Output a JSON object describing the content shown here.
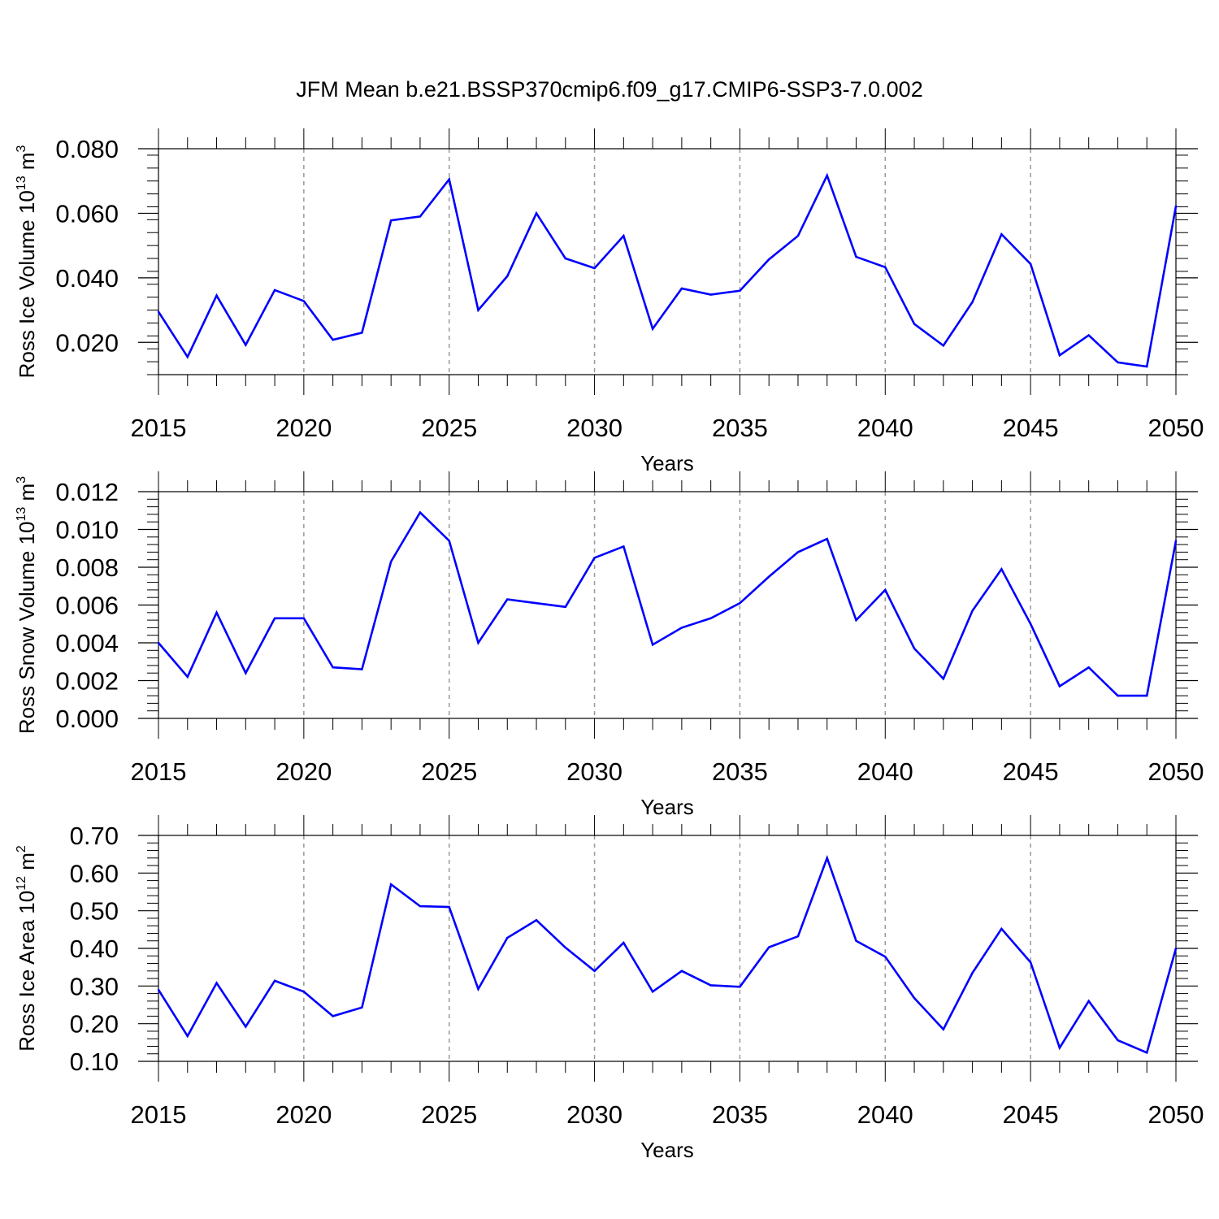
{
  "title": "JFM Mean b.e21.BSSP370cmip6.f09_g17.CMIP6-SSP3-7.0.002",
  "colors": {
    "line": "#0000ff",
    "axis": "#000000",
    "grid": "#999999",
    "background": "#ffffff"
  },
  "chart_data": [
    {
      "type": "line",
      "ylabel": "Ross Ice Volume 10",
      "ylabel_exponent": "13",
      "ylabel_unit": "m",
      "ylabel_unit_power": "3",
      "xlabel": "Years",
      "xlim": [
        2015,
        2050
      ],
      "ylim": [
        0.01,
        0.08
      ],
      "xticks": [
        "2015",
        "2020",
        "2025",
        "2030",
        "2035",
        "2040",
        "2045",
        "2050"
      ],
      "yticks": [
        "0.020",
        "0.040",
        "0.060",
        "0.080"
      ],
      "grid": "vertical dashed at major x ticks",
      "series": [
        {
          "name": "Ross Ice Volume",
          "x": [
            2015,
            2016,
            2017,
            2018,
            2019,
            2020,
            2021,
            2022,
            2023,
            2024,
            2025,
            2026,
            2027,
            2028,
            2029,
            2030,
            2031,
            2032,
            2033,
            2034,
            2035,
            2036,
            2037,
            2038,
            2039,
            2040,
            2041,
            2042,
            2043,
            2044,
            2045,
            2046,
            2047,
            2048,
            2049,
            2050
          ],
          "values": [
            0.0295,
            0.0155,
            0.0345,
            0.0192,
            0.0362,
            0.0328,
            0.0208,
            0.023,
            0.0578,
            0.059,
            0.0705,
            0.03,
            0.0405,
            0.06,
            0.046,
            0.043,
            0.053,
            0.0242,
            0.0367,
            0.0348,
            0.036,
            0.0457,
            0.053,
            0.0717,
            0.0465,
            0.0433,
            0.0257,
            0.019,
            0.0325,
            0.0535,
            0.0443,
            0.016,
            0.0222,
            0.0138,
            0.0125,
            0.0622
          ]
        }
      ]
    },
    {
      "type": "line",
      "ylabel": "Ross Snow Volume 10",
      "ylabel_exponent": "13",
      "ylabel_unit": "m",
      "ylabel_unit_power": "3",
      "xlabel": "Years",
      "xlim": [
        2015,
        2050
      ],
      "ylim": [
        0.0,
        0.012
      ],
      "xticks": [
        "2015",
        "2020",
        "2025",
        "2030",
        "2035",
        "2040",
        "2045",
        "2050"
      ],
      "yticks": [
        "0.000",
        "0.002",
        "0.004",
        "0.006",
        "0.008",
        "0.010",
        "0.012"
      ],
      "grid": "vertical dashed at major x ticks",
      "series": [
        {
          "name": "Ross Snow Volume",
          "x": [
            2015,
            2016,
            2017,
            2018,
            2019,
            2020,
            2021,
            2022,
            2023,
            2024,
            2025,
            2026,
            2027,
            2028,
            2029,
            2030,
            2031,
            2032,
            2033,
            2034,
            2035,
            2036,
            2037,
            2038,
            2039,
            2040,
            2041,
            2042,
            2043,
            2044,
            2045,
            2046,
            2047,
            2048,
            2049,
            2050
          ],
          "values": [
            0.004,
            0.0022,
            0.0056,
            0.0024,
            0.0053,
            0.0053,
            0.0027,
            0.0026,
            0.0083,
            0.0109,
            0.0094,
            0.004,
            0.0063,
            0.0061,
            0.0059,
            0.0085,
            0.0091,
            0.0039,
            0.0048,
            0.0053,
            0.0061,
            0.0075,
            0.0088,
            0.0095,
            0.0052,
            0.0068,
            0.0037,
            0.0021,
            0.0057,
            0.0079,
            0.005,
            0.0017,
            0.0027,
            0.0012,
            0.0012,
            0.0094
          ]
        }
      ]
    },
    {
      "type": "line",
      "ylabel": "Ross Ice Area 10",
      "ylabel_exponent": "12",
      "ylabel_unit": "m",
      "ylabel_unit_power": "2",
      "xlabel": "Years",
      "xlim": [
        2015,
        2050
      ],
      "ylim": [
        0.1,
        0.7
      ],
      "xticks": [
        "2015",
        "2020",
        "2025",
        "2030",
        "2035",
        "2040",
        "2045",
        "2050"
      ],
      "yticks": [
        "0.10",
        "0.20",
        "0.30",
        "0.40",
        "0.50",
        "0.60",
        "0.70"
      ],
      "grid": "vertical dashed at major x ticks",
      "series": [
        {
          "name": "Ross Ice Area",
          "x": [
            2015,
            2016,
            2017,
            2018,
            2019,
            2020,
            2021,
            2022,
            2023,
            2024,
            2025,
            2026,
            2027,
            2028,
            2029,
            2030,
            2031,
            2032,
            2033,
            2034,
            2035,
            2036,
            2037,
            2038,
            2039,
            2040,
            2041,
            2042,
            2043,
            2044,
            2045,
            2046,
            2047,
            2048,
            2049,
            2050
          ],
          "values": [
            0.29,
            0.167,
            0.308,
            0.192,
            0.314,
            0.285,
            0.22,
            0.243,
            0.57,
            0.512,
            0.51,
            0.292,
            0.428,
            0.475,
            0.402,
            0.34,
            0.415,
            0.285,
            0.34,
            0.302,
            0.298,
            0.403,
            0.432,
            0.64,
            0.42,
            0.378,
            0.268,
            0.185,
            0.335,
            0.452,
            0.363,
            0.136,
            0.26,
            0.156,
            0.123,
            0.4
          ]
        }
      ]
    }
  ]
}
